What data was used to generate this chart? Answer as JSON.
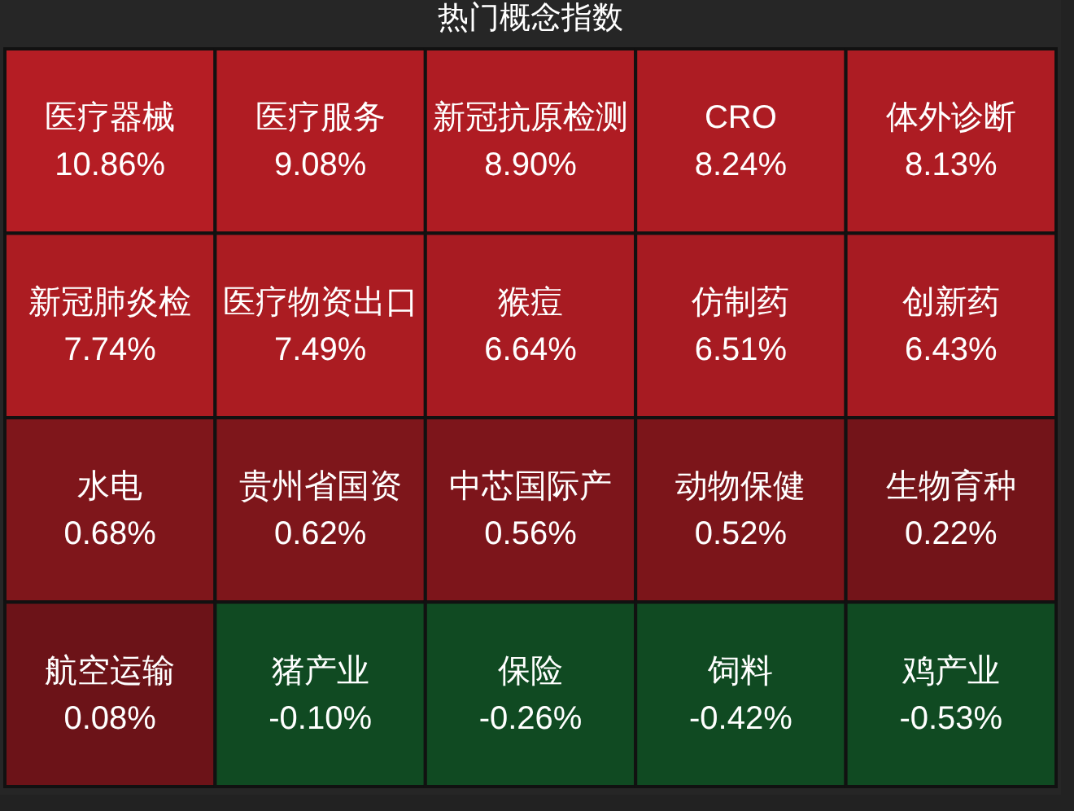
{
  "chart_data": {
    "type": "other",
    "title": "热门概念指数",
    "categories": [
      "医疗器械",
      "医疗服务",
      "新冠抗原检测",
      "CRO",
      "体外诊断",
      "新冠肺炎检",
      "医疗物资出口",
      "猴痘",
      "仿制药",
      "创新药",
      "水电",
      "贵州省国资",
      "中芯国际产",
      "动物保健",
      "生物育种",
      "航空运输",
      "猪产业",
      "保险",
      "饲料",
      "鸡产业"
    ],
    "values": [
      10.86,
      9.08,
      8.9,
      8.24,
      8.13,
      7.74,
      7.49,
      6.64,
      6.51,
      6.43,
      0.68,
      0.62,
      0.56,
      0.52,
      0.22,
      0.08,
      -0.1,
      -0.26,
      -0.42,
      -0.53
    ],
    "value_labels": [
      "10.86%",
      "9.08%",
      "8.90%",
      "8.24%",
      "8.13%",
      "7.74%",
      "7.49%",
      "6.64%",
      "6.51%",
      "6.43%",
      "0.68%",
      "0.62%",
      "0.56%",
      "0.52%",
      "0.22%",
      "0.08%",
      "-0.10%",
      "-0.26%",
      "-0.42%",
      "-0.53%"
    ]
  }
}
